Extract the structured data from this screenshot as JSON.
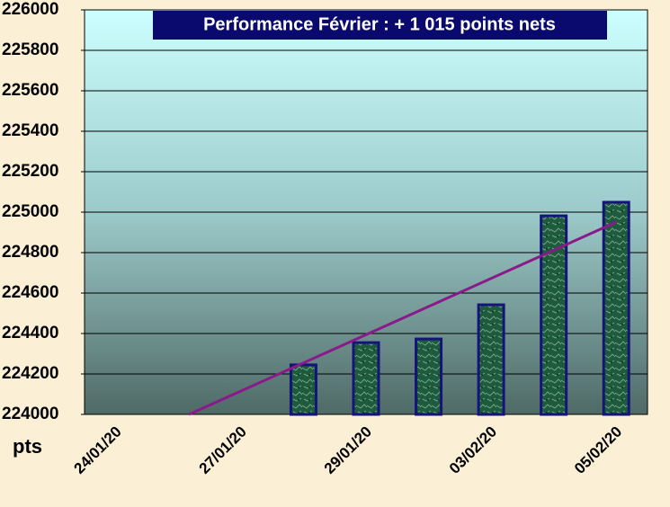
{
  "chart_data": {
    "type": "bar",
    "title": "Performance  Février  : +  1 015  points nets",
    "y_label": "pts",
    "categories": [
      "24/01/20",
      null,
      "27/01/20",
      null,
      "29/01/20",
      null,
      "03/02/20",
      null,
      "05/02/20"
    ],
    "values": [
      224000,
      224000,
      224000,
      224245,
      224355,
      224373,
      224542,
      224982,
      225049
    ],
    "color": "#1e5a3c",
    "edge_color": "#14147a",
    "trendline": true,
    "trendline_color": "#8a1a8a",
    "ylim": [
      224000,
      226000
    ],
    "yticks": [
      224000,
      224200,
      224400,
      224600,
      224800,
      225000,
      225200,
      225400,
      225600,
      225800,
      226000
    ],
    "grid": true
  }
}
